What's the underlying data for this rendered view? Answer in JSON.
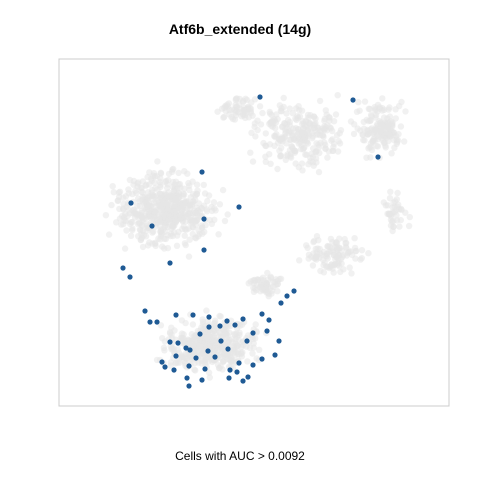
{
  "chart_data": {
    "type": "scatter",
    "title": "Atf6b_extended (14g)",
    "xlabel": "Cells with AUC > 0.0092",
    "ylabel": "",
    "axes_shown": false,
    "grid": false,
    "legend": "none",
    "colors": {
      "background_cells": "#e6e6e6",
      "highlighted_cells": "#1f5a94",
      "frame": "#cccccc"
    },
    "series": [
      {
        "highlighted": true,
        "points": [
          [
            260,
            97
          ],
          [
            353,
            100
          ],
          [
            378,
            157
          ],
          [
            202,
            172
          ],
          [
            131,
            203
          ],
          [
            152,
            226
          ],
          [
            204,
            219
          ],
          [
            239,
            207
          ],
          [
            204,
            250
          ],
          [
            170,
            263
          ],
          [
            123,
            268
          ],
          [
            130,
            277
          ],
          [
            287,
            296
          ],
          [
            294,
            291
          ],
          [
            281,
            303
          ],
          [
            145,
            311
          ],
          [
            150,
            322
          ],
          [
            157,
            322
          ],
          [
            176,
            315
          ],
          [
            193,
            315
          ],
          [
            209,
            317
          ],
          [
            227,
            321
          ],
          [
            220,
            326
          ],
          [
            243,
            319
          ],
          [
            262,
            314
          ],
          [
            269,
            320
          ],
          [
            200,
            334
          ],
          [
            209,
            327
          ],
          [
            235,
            325
          ],
          [
            253,
            333
          ],
          [
            267,
            331
          ],
          [
            170,
            342
          ],
          [
            178,
            343
          ],
          [
            190,
            350
          ],
          [
            221,
            341
          ],
          [
            247,
            341
          ],
          [
            279,
            341
          ],
          [
            186,
            348
          ],
          [
            196,
            358
          ],
          [
            176,
            356
          ],
          [
            162,
            362
          ],
          [
            165,
            367
          ],
          [
            174,
            370
          ],
          [
            189,
            366
          ],
          [
            205,
            369
          ],
          [
            230,
            370
          ],
          [
            237,
            372
          ],
          [
            253,
            365
          ],
          [
            262,
            359
          ],
          [
            275,
            355
          ],
          [
            229,
            378
          ],
          [
            243,
            381
          ],
          [
            248,
            377
          ],
          [
            187,
            378
          ],
          [
            189,
            386
          ],
          [
            202,
            380
          ],
          [
            239,
            363
          ],
          [
            208,
            351
          ],
          [
            228,
            349
          ],
          [
            215,
            357
          ]
        ]
      }
    ]
  }
}
